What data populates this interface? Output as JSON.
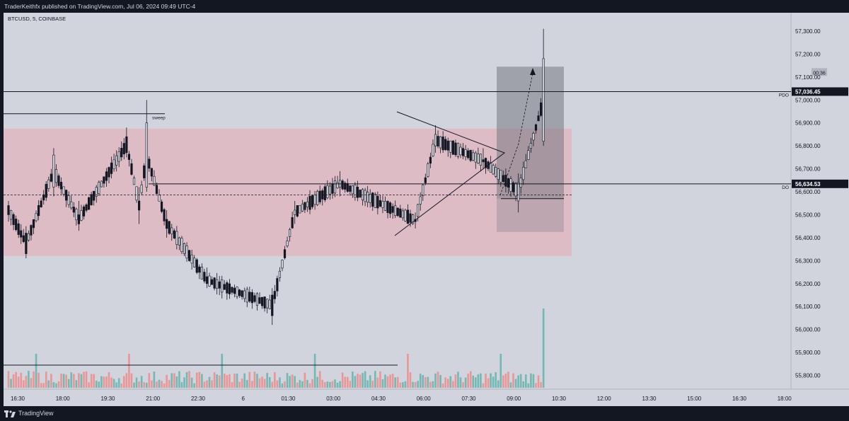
{
  "header": {
    "publish_line": "TraderKeithfx published on TradingView.com, Jul 06, 2024 09:49 UTC-4"
  },
  "footer": {
    "brand": "TradingView"
  },
  "colors": {
    "background": "#d1d4dc",
    "frame": "#131722",
    "bull": "#d1d4dc",
    "bear": "#131722",
    "vol_bull": "#63b4ac",
    "vol_bear": "#ef8b8b",
    "zone_fill": "#e8a8b4",
    "box_fill": "#6e7078"
  },
  "chart_data": {
    "type": "candlestick",
    "symbol_label": "BTCUSD, 5, COINBASE",
    "timeframe_minutes": 5,
    "ylim": [
      55740,
      57380
    ],
    "y_ticks": [
      55800,
      55900,
      56000,
      56100,
      56200,
      56300,
      56400,
      56500,
      56600,
      56700,
      56800,
      56900,
      57000,
      57100,
      57200,
      57300
    ],
    "y_tick_labels": [
      "55,800.00",
      "55,900.00",
      "56,000.00",
      "56,100.00",
      "56,200.00",
      "56,300.00",
      "56,400.00",
      "56,500.00",
      "56,600.00",
      "56,700.00",
      "56,800.00",
      "56,900.00",
      "57,000.00",
      "57,100.00",
      "57,200.00",
      "57,300.00"
    ],
    "x_tick_labels": [
      "16:30",
      "18:00",
      "19:30",
      "21:00",
      "22:30",
      "6",
      "01:30",
      "03:00",
      "04:30",
      "06:00",
      "07:30",
      "09:00",
      "10:30",
      "12:00",
      "13:30",
      "15:00",
      "16:30",
      "18:00"
    ],
    "ohlc_anchors": [
      {
        "t": "Jul 05 16:00",
        "o": 56540,
        "h": 56560,
        "l": 56470,
        "c": 56500
      },
      {
        "t": "Jul 05 16:35",
        "o": 56420,
        "h": 56450,
        "l": 56310,
        "c": 56330
      },
      {
        "t": "Jul 05 17:30",
        "o": 56620,
        "h": 56790,
        "l": 56580,
        "c": 56760
      },
      {
        "t": "Jul 05 18:20",
        "o": 56500,
        "h": 56560,
        "l": 56430,
        "c": 56460
      },
      {
        "t": "Jul 05 19:55",
        "o": 56840,
        "h": 56880,
        "l": 56750,
        "c": 56770
      },
      {
        "t": "Jul 05 20:20",
        "o": 56560,
        "h": 56620,
        "l": 56460,
        "c": 56520
      },
      {
        "t": "Jul 05 20:35",
        "o": 56620,
        "h": 57000,
        "l": 56600,
        "c": 56900
      },
      {
        "t": "Jul 05 21:15",
        "o": 56480,
        "h": 56520,
        "l": 56400,
        "c": 56440
      },
      {
        "t": "Jul 05 22:35",
        "o": 56230,
        "h": 56270,
        "l": 56180,
        "c": 56200
      },
      {
        "t": "Jul 06 00:45",
        "o": 56150,
        "h": 56180,
        "l": 56020,
        "c": 56060
      },
      {
        "t": "Jul 06 01:30",
        "o": 56500,
        "h": 56560,
        "l": 56460,
        "c": 56520
      },
      {
        "t": "Jul 06 03:00",
        "o": 56620,
        "h": 56690,
        "l": 56580,
        "c": 56650
      },
      {
        "t": "Jul 06 05:30",
        "o": 56480,
        "h": 56510,
        "l": 56440,
        "c": 56470
      },
      {
        "t": "Jul 06 06:10",
        "o": 56800,
        "h": 56890,
        "l": 56770,
        "c": 56850
      },
      {
        "t": "Jul 06 07:45",
        "o": 56740,
        "h": 56790,
        "l": 56700,
        "c": 56730
      },
      {
        "t": "Jul 06 08:55",
        "o": 56560,
        "h": 56680,
        "l": 56510,
        "c": 56640
      },
      {
        "t": "Jul 06 09:45",
        "o": 56820,
        "h": 57310,
        "l": 56800,
        "c": 57180
      }
    ],
    "volume_baseline_price": 55845,
    "levels": [
      {
        "label": "PDO",
        "price": 57036.45,
        "text": "57,036.45"
      },
      {
        "label": "DO",
        "price": 56634.53,
        "text": "56,634.53"
      }
    ],
    "annotations": {
      "sweep_label": "sweep",
      "sweep_price": 56940,
      "countdown": "00:36",
      "countdown_price": 57120
    },
    "zones": [
      {
        "kind": "range",
        "top": 56875,
        "bottom": 56320
      },
      {
        "kind": "position-profit",
        "top": 57145,
        "bottom": 56570
      },
      {
        "kind": "position-risk",
        "top": 56570,
        "bottom": 56425
      }
    ]
  }
}
